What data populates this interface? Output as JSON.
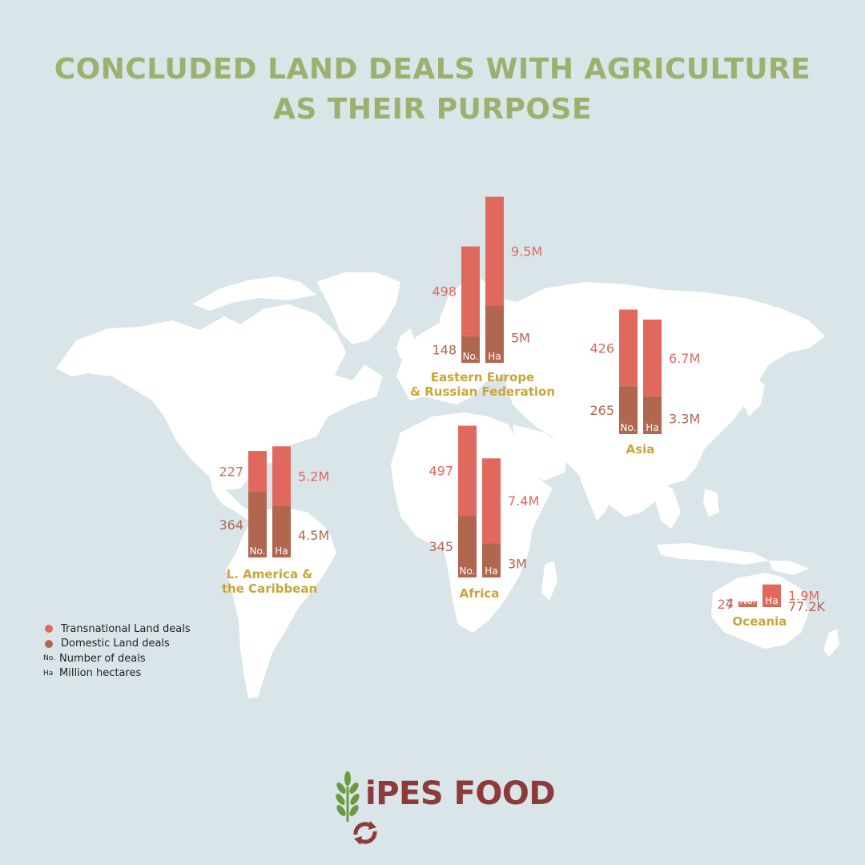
{
  "title": {
    "line1": "CONCLUDED LAND DEALS WITH AGRICULTURE",
    "line2": "AS THEIR PURPOSE"
  },
  "colors": {
    "title": "#9bb16d",
    "transnational": "#e0685c",
    "domestic": "#b0664f",
    "region_label": "#c9a63a",
    "map": "#ffffff",
    "background": "#d9e5e8",
    "logo_text": "#8c3a3a",
    "logo_leaf": "#6e9a3f"
  },
  "chart_data": {
    "type": "bar",
    "stacked": true,
    "series": [
      {
        "name": "Transnational Land deals"
      },
      {
        "name": "Domestic Land deals"
      }
    ],
    "regions": [
      {
        "label": "Eastern Europe & Russian Federation",
        "label_lines": [
          "Eastern Europe",
          "& Russian Federation"
        ],
        "deals": {
          "transnational": 498,
          "domestic": 148
        },
        "hectares_millions": {
          "transnational": 9.5,
          "domestic": 5.0
        },
        "deals_labels": {
          "transnational": "498",
          "domestic": "148"
        },
        "hectares_labels": {
          "transnational": "9.5M",
          "domestic": "5M"
        }
      },
      {
        "label": "Asia",
        "label_lines": [
          "Asia"
        ],
        "deals": {
          "transnational": 426,
          "domestic": 265
        },
        "hectares_millions": {
          "transnational": 6.7,
          "domestic": 3.3
        },
        "deals_labels": {
          "transnational": "426",
          "domestic": "265"
        },
        "hectares_labels": {
          "transnational": "6.7M",
          "domestic": "3.3M"
        }
      },
      {
        "label": "L. America & the Caribbean",
        "label_lines": [
          "L. America &",
          "the Caribbean"
        ],
        "deals": {
          "transnational": 227,
          "domestic": 364
        },
        "hectares_millions": {
          "transnational": 5.2,
          "domestic": 4.5
        },
        "deals_labels": {
          "transnational": "227",
          "domestic": "364"
        },
        "hectares_labels": {
          "transnational": "5.2M",
          "domestic": "4.5M"
        }
      },
      {
        "label": "Africa",
        "label_lines": [
          "Africa"
        ],
        "deals": {
          "transnational": 497,
          "domestic": 345
        },
        "hectares_millions": {
          "transnational": 7.4,
          "domestic": 3.0
        },
        "deals_labels": {
          "transnational": "497",
          "domestic": "345"
        },
        "hectares_labels": {
          "transnational": "7.4M",
          "domestic": "3M"
        }
      },
      {
        "label": "Oceania",
        "label_lines": [
          "Oceania"
        ],
        "deals": {
          "transnational": 27,
          "domestic": 4
        },
        "hectares_millions": {
          "transnational": 1.9,
          "domestic": 0.0772
        },
        "deals_labels": {
          "transnational": "27",
          "domestic": "4"
        },
        "hectares_labels": {
          "transnational": "1.9M",
          "domestic": "77.2K"
        }
      }
    ],
    "bar_tags": {
      "deals": "No.",
      "hectares": "Ha"
    }
  },
  "legend": {
    "transnational": "Transnational Land deals",
    "domestic": "Domestic Land deals",
    "no_abbr": "No.",
    "no_text": "Number of deals",
    "ha_abbr": "Ha",
    "ha_text": "Million hectares"
  },
  "logo": {
    "text": "iPES FOOD"
  }
}
